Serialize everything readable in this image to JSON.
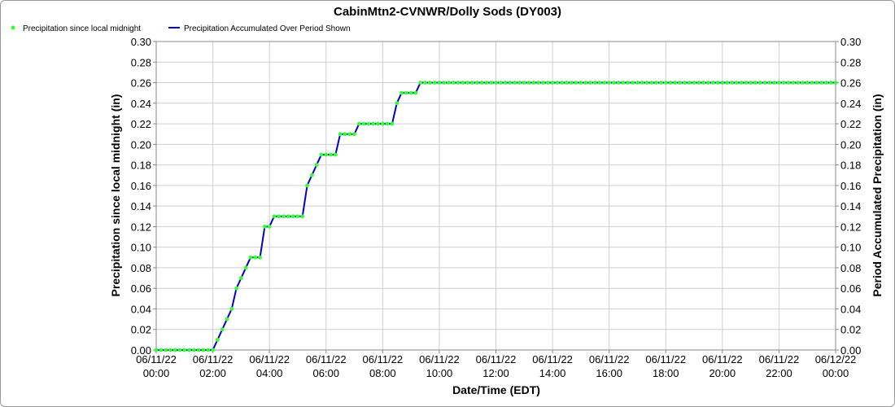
{
  "chart_data": {
    "type": "line",
    "title": "CabinMtn2-CVNWR/Dolly Sods (DY003)",
    "xlabel": "Date/Time (EDT)",
    "ylabel_left": "Precipitation since local midnight (in)",
    "ylabel_right": "Period Accumulated Precipitation (in)",
    "legend": {
      "placement": "top-left",
      "entries": [
        {
          "label": "Precipitation since local midnight",
          "marker": "dot",
          "color": "#33ff33"
        },
        {
          "label": "Precipitation Accumulated Over Period Shown",
          "marker": "line",
          "color": "#0000cc"
        }
      ]
    },
    "ylim": [
      0,
      0.3
    ],
    "yticks": [
      "0.00",
      "0.02",
      "0.04",
      "0.06",
      "0.08",
      "0.10",
      "0.12",
      "0.14",
      "0.16",
      "0.18",
      "0.20",
      "0.22",
      "0.24",
      "0.26",
      "0.28",
      "0.30"
    ],
    "xlim_hours": [
      0,
      24
    ],
    "xticks": [
      {
        "date": "06/11/22",
        "time": "00:00"
      },
      {
        "date": "06/11/22",
        "time": "02:00"
      },
      {
        "date": "06/11/22",
        "time": "04:00"
      },
      {
        "date": "06/11/22",
        "time": "06:00"
      },
      {
        "date": "06/11/22",
        "time": "08:00"
      },
      {
        "date": "06/11/22",
        "time": "10:00"
      },
      {
        "date": "06/11/22",
        "time": "12:00"
      },
      {
        "date": "06/11/22",
        "time": "14:00"
      },
      {
        "date": "06/11/22",
        "time": "16:00"
      },
      {
        "date": "06/11/22",
        "time": "18:00"
      },
      {
        "date": "06/11/22",
        "time": "20:00"
      },
      {
        "date": "06/11/22",
        "time": "22:00"
      },
      {
        "date": "06/12/22",
        "time": "00:00"
      }
    ],
    "grid": true,
    "interval_minutes": 10,
    "series": [
      {
        "name": "Precipitation since local midnight",
        "color": "#33ff33",
        "values": [
          0,
          0,
          0,
          0,
          0,
          0,
          0,
          0,
          0,
          0,
          0,
          0,
          0,
          0.01,
          0.02,
          0.03,
          0.04,
          0.06,
          0.07,
          0.08,
          0.09,
          0.09,
          0.09,
          0.12,
          0.12,
          0.13,
          0.13,
          0.13,
          0.13,
          0.13,
          0.13,
          0.13,
          0.16,
          0.17,
          0.18,
          0.19,
          0.19,
          0.19,
          0.19,
          0.21,
          0.21,
          0.21,
          0.21,
          0.22,
          0.22,
          0.22,
          0.22,
          0.22,
          0.22,
          0.22,
          0.22,
          0.24,
          0.25,
          0.25,
          0.25,
          0.25,
          0.26,
          0.26,
          0.26,
          0.26,
          0.26,
          0.26,
          0.26,
          0.26,
          0.26,
          0.26,
          0.26,
          0.26,
          0.26,
          0.26,
          0.26,
          0.26,
          0.26,
          0.26,
          0.26,
          0.26,
          0.26,
          0.26,
          0.26,
          0.26,
          0.26,
          0.26,
          0.26,
          0.26,
          0.26,
          0.26,
          0.26,
          0.26,
          0.26,
          0.26,
          0.26,
          0.26,
          0.26,
          0.26,
          0.26,
          0.26,
          0.26,
          0.26,
          0.26,
          0.26,
          0.26,
          0.26,
          0.26,
          0.26,
          0.26,
          0.26,
          0.26,
          0.26,
          0.26,
          0.26,
          0.26,
          0.26,
          0.26,
          0.26,
          0.26,
          0.26,
          0.26,
          0.26,
          0.26,
          0.26,
          0.26,
          0.26,
          0.26,
          0.26,
          0.26,
          0.26,
          0.26,
          0.26,
          0.26,
          0.26,
          0.26,
          0.26,
          0.26,
          0.26,
          0.26,
          0.26,
          0.26,
          0.26,
          0.26,
          0.26,
          0.26,
          0.26,
          0.26,
          0.26,
          0.26
        ]
      },
      {
        "name": "Precipitation Accumulated Over Period Shown",
        "color": "#0000cc",
        "same_values_as_series": 0
      }
    ]
  }
}
